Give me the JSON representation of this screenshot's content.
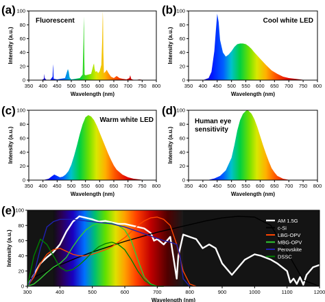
{
  "chart_data": [
    {
      "id": "a",
      "panel_label": "(a)",
      "type": "line",
      "title": "Fluorescent",
      "xlabel": "Wavelength (nm)",
      "ylabel": "Intensity (a.u.)",
      "xlim": [
        350,
        800
      ],
      "ylim": [
        0,
        100
      ],
      "xticks": [
        350,
        400,
        450,
        500,
        550,
        600,
        650,
        700,
        750,
        800
      ],
      "yticks": [
        0,
        20,
        40,
        60,
        80,
        100
      ],
      "fill": "spectrum",
      "series": [
        {
          "x": [
            350,
            395,
            403,
            404,
            405,
            406,
            413,
            425,
            434,
            435,
            436,
            437,
            438,
            450,
            478,
            484,
            488,
            491,
            494,
            500,
            530,
            540,
            543,
            544,
            545,
            546,
            547,
            550,
            570,
            578,
            580,
            582,
            585,
            590,
            595,
            600,
            606,
            609,
            611,
            612,
            613,
            615,
            620,
            625,
            630,
            640,
            650,
            660,
            670,
            680,
            695,
            705,
            708,
            711,
            715,
            725,
            740,
            760,
            780,
            800
          ],
          "y": [
            0,
            0,
            2,
            6,
            9,
            3,
            0,
            0,
            5,
            18,
            23,
            10,
            2,
            1,
            3,
            11,
            16,
            12,
            4,
            1,
            3,
            8,
            60,
            92,
            75,
            30,
            8,
            7,
            9,
            22,
            24,
            17,
            12,
            13,
            10,
            13,
            22,
            57,
            100,
            86,
            40,
            10,
            12,
            15,
            11,
            5,
            3,
            6,
            3,
            2,
            1,
            3,
            7,
            2,
            1,
            0,
            1,
            0,
            0,
            0
          ]
        }
      ]
    },
    {
      "id": "b",
      "panel_label": "(b)",
      "type": "area",
      "title": "Cool white LED",
      "xlabel": "Wavelength (nm)",
      "ylabel": "Intensity (a.u.)",
      "xlim": [
        350,
        800
      ],
      "ylim": [
        0,
        100
      ],
      "xticks": [
        350,
        400,
        450,
        500,
        550,
        600,
        650,
        700,
        750,
        800
      ],
      "yticks": [
        0,
        20,
        40,
        60,
        80,
        100
      ],
      "fill": "spectrum",
      "series": [
        {
          "x": [
            400,
            420,
            430,
            440,
            445,
            450,
            455,
            460,
            470,
            480,
            490,
            500,
            510,
            520,
            530,
            540,
            550,
            560,
            570,
            580,
            600,
            620,
            640,
            660,
            680,
            700,
            720,
            740,
            760,
            780
          ],
          "y": [
            0,
            3,
            12,
            42,
            70,
            96,
            84,
            58,
            40,
            34,
            37,
            42,
            48,
            52,
            53,
            53,
            52,
            49,
            45,
            40,
            31,
            22,
            14,
            9,
            5,
            3,
            2,
            1,
            0,
            0
          ]
        }
      ]
    },
    {
      "id": "c",
      "panel_label": "(c)",
      "type": "area",
      "title": "Warm white LED",
      "xlabel": "Wavelength (nm)",
      "ylabel": "Intensity (a.u.)",
      "xlim": [
        350,
        800
      ],
      "ylim": [
        0,
        100
      ],
      "xticks": [
        350,
        400,
        450,
        500,
        550,
        600,
        650,
        700,
        750,
        800
      ],
      "yticks": [
        0,
        20,
        40,
        60,
        80,
        100
      ],
      "fill": "spectrum",
      "series": [
        {
          "x": [
            400,
            420,
            430,
            440,
            450,
            460,
            470,
            480,
            490,
            500,
            510,
            520,
            530,
            540,
            550,
            560,
            570,
            580,
            590,
            600,
            610,
            620,
            630,
            640,
            650,
            660,
            680,
            700,
            720,
            740,
            760,
            780
          ],
          "y": [
            0,
            2,
            5,
            8,
            6,
            4,
            5,
            8,
            13,
            22,
            35,
            50,
            66,
            80,
            90,
            93,
            91,
            86,
            78,
            68,
            58,
            48,
            38,
            29,
            21,
            15,
            8,
            4,
            2,
            1,
            0,
            0
          ]
        }
      ]
    },
    {
      "id": "d",
      "panel_label": "(d)",
      "type": "area",
      "title": "Human eye\nsensitivity",
      "xlabel": "Wavelength (nm)",
      "ylabel": "Intensity (a.u.)",
      "xlim": [
        350,
        800
      ],
      "ylim": [
        0,
        100
      ],
      "xticks": [
        350,
        400,
        450,
        500,
        550,
        600,
        650,
        700,
        750,
        800
      ],
      "yticks": [
        0,
        20,
        40,
        60,
        80,
        100
      ],
      "fill": "spectrum",
      "series": [
        {
          "x": [
            400,
            420,
            440,
            460,
            480,
            500,
            510,
            520,
            530,
            540,
            550,
            555,
            560,
            570,
            580,
            590,
            600,
            610,
            620,
            630,
            640,
            650,
            660,
            680,
            700,
            720
          ],
          "y": [
            0,
            0.4,
            2.3,
            6,
            14,
            32,
            50,
            71,
            86,
            95,
            99,
            100,
            99,
            95,
            87,
            76,
            63,
            50,
            38,
            27,
            17,
            11,
            6,
            2,
            0.4,
            0
          ]
        }
      ]
    },
    {
      "id": "e",
      "panel_label": "(e)",
      "type": "line",
      "xlabel": "Wavelength (nm)",
      "ylabel": "Intensity (a.u.)",
      "xlim": [
        300,
        1200
      ],
      "ylim": [
        0,
        100
      ],
      "xticks": [
        300,
        400,
        500,
        600,
        700,
        800,
        900,
        1000,
        1100,
        1200
      ],
      "yticks": [
        0,
        20,
        40,
        60,
        80,
        100
      ],
      "background": "visible spectrum 380–780 nm, black elsewhere",
      "legend_position": "top-right",
      "series": [
        {
          "name": "AM 1.5G",
          "color": "#ffffff",
          "x": [
            300,
            320,
            340,
            360,
            380,
            400,
            420,
            440,
            460,
            480,
            500,
            520,
            540,
            560,
            580,
            600,
            620,
            640,
            660,
            680,
            690,
            700,
            720,
            740,
            760,
            765,
            780,
            800,
            820,
            840,
            860,
            880,
            900,
            920,
            930,
            950,
            970,
            1000,
            1020,
            1050,
            1070,
            1100,
            1110,
            1120,
            1130,
            1140,
            1150,
            1160,
            1180,
            1200
          ],
          "y": [
            0,
            15,
            30,
            38,
            45,
            55,
            72,
            85,
            92,
            90,
            88,
            85,
            86,
            84,
            82,
            82,
            80,
            78,
            76,
            70,
            60,
            62,
            55,
            65,
            10,
            40,
            68,
            65,
            62,
            50,
            55,
            50,
            30,
            20,
            15,
            25,
            35,
            42,
            40,
            35,
            30,
            20,
            5,
            10,
            3,
            12,
            2,
            15,
            25,
            28
          ]
        },
        {
          "name": "c-Si",
          "color": "#000000",
          "x": [
            300,
            350,
            400,
            450,
            500,
            550,
            600,
            650,
            700,
            750,
            800,
            850,
            900,
            950,
            1000,
            1050,
            1100,
            1150,
            1200
          ],
          "y": [
            8,
            18,
            28,
            37,
            45,
            52,
            59,
            65,
            71,
            76,
            81,
            86,
            90,
            92,
            91,
            80,
            45,
            8,
            0
          ]
        },
        {
          "name": "LBG-OPV",
          "color": "#ff4500",
          "x": [
            300,
            320,
            340,
            360,
            380,
            400,
            420,
            440,
            460,
            480,
            500,
            520,
            540,
            560,
            580,
            600,
            620,
            640,
            660,
            680,
            700,
            720,
            740,
            760,
            780,
            800,
            820
          ],
          "y": [
            0,
            12,
            30,
            42,
            48,
            50,
            46,
            42,
            40,
            40,
            42,
            45,
            48,
            52,
            58,
            64,
            72,
            80,
            86,
            90,
            91,
            88,
            80,
            55,
            20,
            3,
            0
          ]
        },
        {
          "name": "MBG-OPV",
          "color": "#32cd32",
          "x": [
            300,
            320,
            340,
            360,
            380,
            400,
            420,
            440,
            460,
            480,
            500,
            520,
            540,
            560,
            580,
            600,
            620,
            640,
            660,
            680,
            700
          ],
          "y": [
            0,
            3,
            10,
            18,
            25,
            30,
            38,
            52,
            64,
            74,
            80,
            83,
            84,
            83,
            80,
            74,
            60,
            35,
            12,
            3,
            0
          ]
        },
        {
          "name": "Perovskite",
          "color": "#2020b0",
          "x": [
            300,
            320,
            340,
            360,
            380,
            400,
            440,
            480,
            520,
            560,
            600,
            640,
            680,
            700,
            720,
            740,
            760,
            770,
            780,
            800
          ],
          "y": [
            0,
            15,
            50,
            78,
            85,
            88,
            88,
            86,
            84,
            82,
            78,
            72,
            66,
            63,
            60,
            58,
            55,
            40,
            10,
            0
          ]
        },
        {
          "name": "DSSC",
          "color": "#008000",
          "x": [
            300,
            320,
            340,
            360,
            380,
            400,
            420,
            440,
            460,
            480,
            500,
            520,
            540,
            560,
            580,
            600,
            620,
            640,
            660,
            680,
            700,
            720
          ],
          "y": [
            0,
            40,
            62,
            55,
            40,
            25,
            20,
            22,
            28,
            36,
            45,
            52,
            56,
            58,
            55,
            48,
            35,
            20,
            8,
            2,
            0,
            0
          ]
        }
      ]
    }
  ]
}
